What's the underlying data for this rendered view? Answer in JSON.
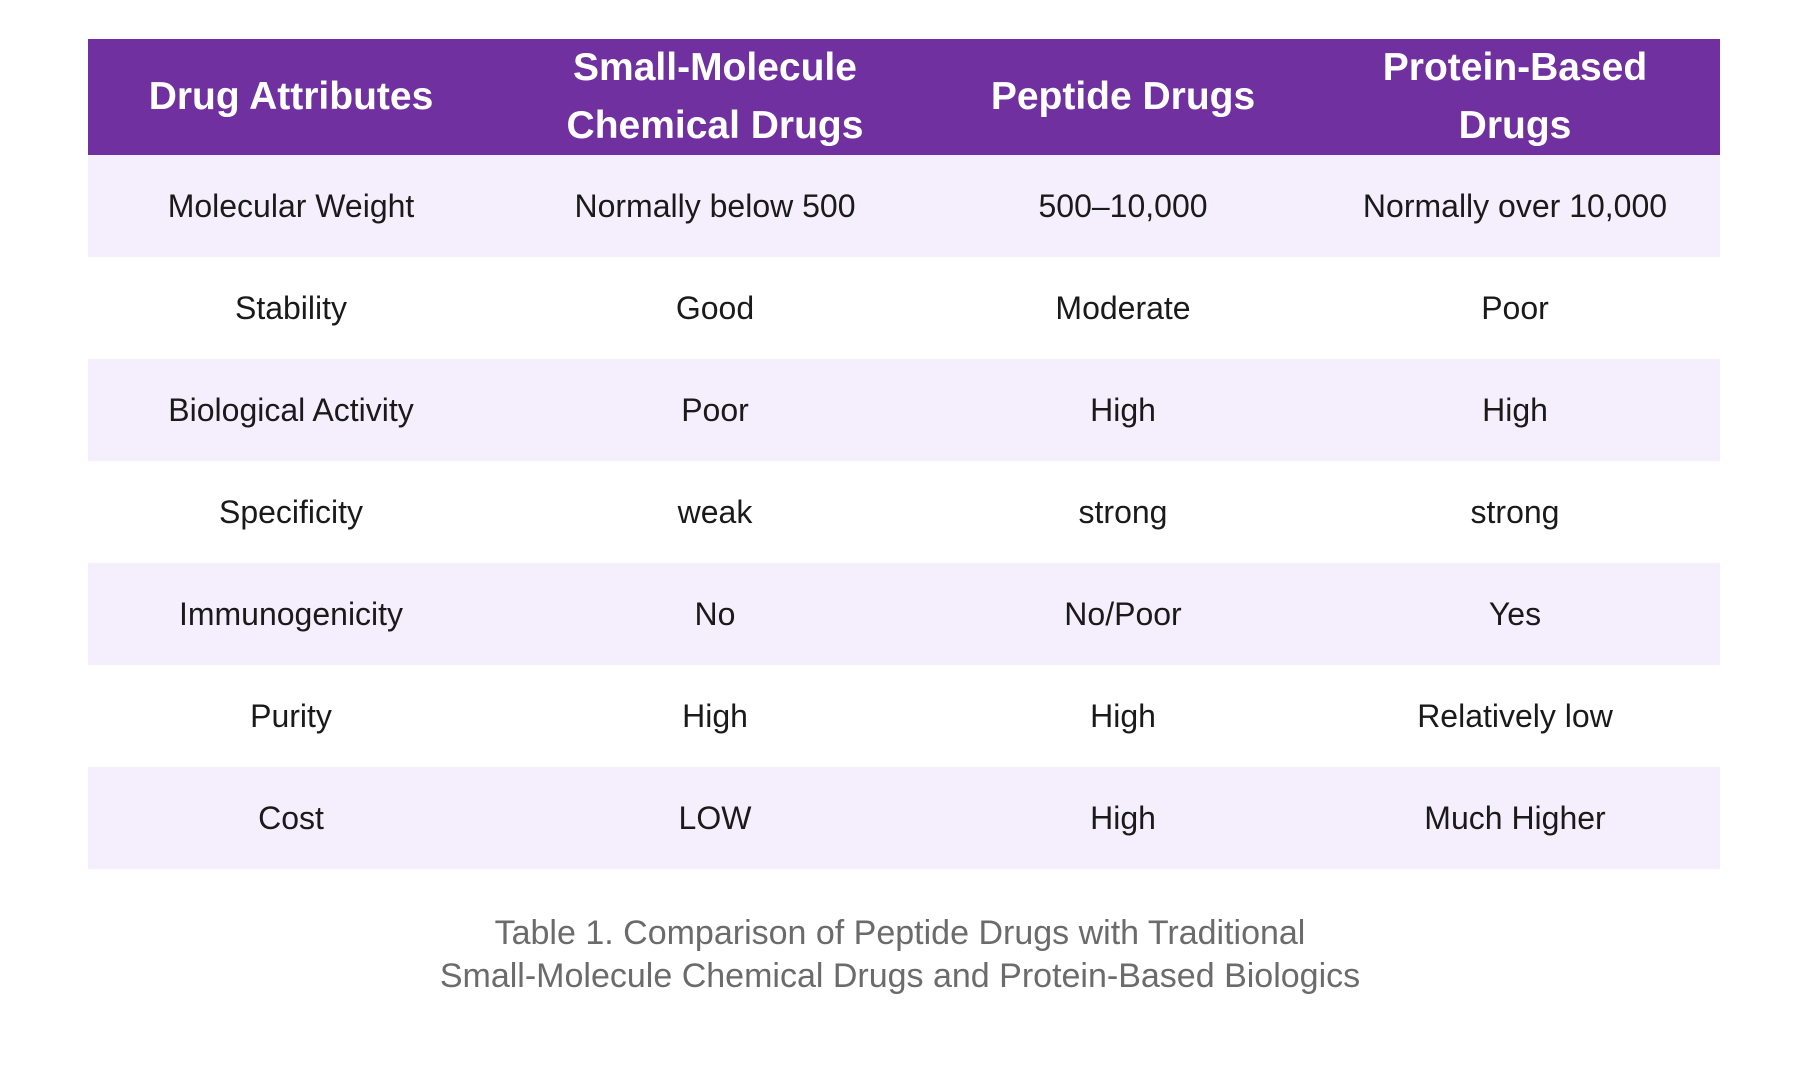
{
  "colors": {
    "header_bg": "#7030a0",
    "header_text": "#ffffff",
    "row_alt_bg": "#f5eefc",
    "row_bg": "#ffffff",
    "caption_text": "#6b6b6b"
  },
  "table": {
    "headers": [
      "Drug Attributes",
      "Small-Molecule Chemical Drugs",
      "Peptide Drugs",
      "Protein-Based Drugs"
    ],
    "rows": [
      [
        "Molecular Weight",
        "Normally below 500",
        "500–10,000",
        "Normally over 10,000"
      ],
      [
        "Stability",
        "Good",
        "Moderate",
        "Poor"
      ],
      [
        "Biological Activity",
        "Poor",
        "High",
        "High"
      ],
      [
        "Specificity",
        "weak",
        "strong",
        "strong"
      ],
      [
        "Immunogenicity",
        "No",
        "No/Poor",
        "Yes"
      ],
      [
        "Purity",
        "High",
        "High",
        "Relatively low"
      ],
      [
        "Cost",
        "LOW",
        "High",
        "Much Higher"
      ]
    ]
  },
  "caption": {
    "line1": "Table 1. Comparison of Peptide Drugs with Traditional",
    "line2": "Small-Molecule Chemical Drugs and Protein-Based Biologics"
  }
}
